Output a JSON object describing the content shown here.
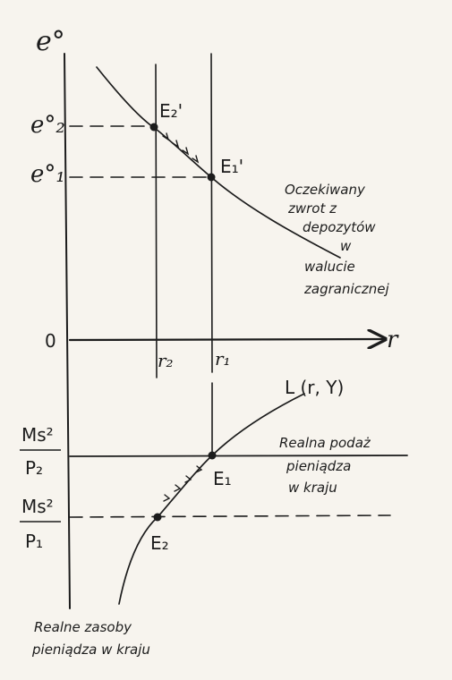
{
  "diagram": {
    "axes": {
      "y_label": "e°",
      "x_label": "r",
      "origin": "0",
      "e2": "e°₂",
      "e1": "e°₁",
      "r2": "r₂",
      "r1": "r₁",
      "ratio_top_num": "Ms²",
      "ratio_top_den": "P₂",
      "ratio_bot_num": "Ms²",
      "ratio_bot_den": "P₁"
    },
    "points": {
      "E2_top": "E₂'",
      "E1_top": "E₁'",
      "E1_bot": "E₁",
      "E2_bot": "E₂"
    },
    "curve_label": "L (r, Y)",
    "notes": {
      "deposits": [
        "Oczekiwany",
        "zwrot z",
        "depozytów",
        "w",
        "walucie",
        "zagranicznej"
      ],
      "supply": [
        "Realna podaż",
        "pieniądza",
        "w kraju"
      ],
      "demand": [
        "Realne zasoby",
        "pieniądza w kraju"
      ]
    },
    "colors": {
      "ink": "#1c1c1c",
      "paper": "#f7f4ee"
    }
  }
}
